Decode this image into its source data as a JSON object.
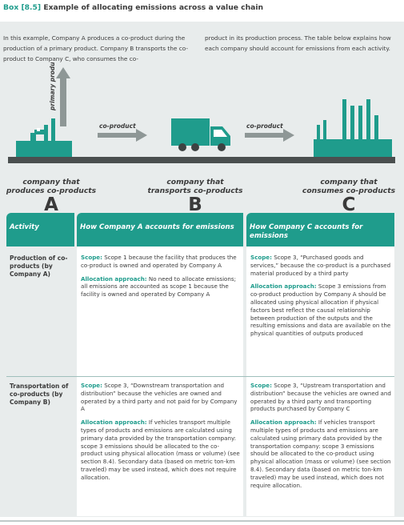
{
  "box": {
    "number": "Box [8.5]",
    "title": "Example of allocating emissions across a value chain"
  },
  "intro": {
    "left": "In this example, Company A produces a co-product during the production of a primary product. Company B transports the co-product to Company C, who consumes the co-",
    "right": "product in its production process. The table below explains how each company should account for emissions from each activity."
  },
  "illustration": {
    "primary_product_label": "primary product",
    "coproduct_label_1": "co-product",
    "coproduct_label_2": "co-product",
    "colors": {
      "teal": "#1f9c8c",
      "gray": "#8e9796",
      "dark": "#3d4242",
      "road": "#4a4f4f"
    }
  },
  "companies": [
    {
      "desc": "company that produces co-products",
      "letter": "A"
    },
    {
      "desc": "company that transports co-products",
      "letter": "B"
    },
    {
      "desc": "company that consumes co-products",
      "letter": "C"
    }
  ],
  "table": {
    "headers": {
      "activity": "Activity",
      "col_a": "How Company A accounts for emissions",
      "col_c": "How Company C accounts for emissions"
    },
    "rows": [
      {
        "activity": "Production of co-products (by Company A)",
        "a_scope_label": "Scope:",
        "a_scope": "Scope 1 because the facility that produces the co-product is owned and operated by Company A",
        "a_alloc_label": "Allocation approach:",
        "a_alloc": "No need to allocate emissions; all emissions are accounted as scope 1 because the facility is owned and operated by Company A",
        "c_scope_label": "Scope:",
        "c_scope": "Scope 3, “Purchased goods and services,” because the co-product is a purchased material produced by a third party",
        "c_alloc_label": "Allocation approach:",
        "c_alloc": "Scope 3 emissions from co-product production by Company A should be allocated using physical allocation if physical factors best reflect the causal relationship between production of the outputs and the resulting emissions and data are available on the physical quantities of outputs produced"
      },
      {
        "activity": "Transportation of co-products (by Company B)",
        "a_scope_label": "Scope:",
        "a_scope": "Scope 3, “Downstream transportation and distribution” because the vehicles are owned and operated by a third party and not paid for by Company A",
        "a_alloc_label": "Allocation approach:",
        "a_alloc": "If vehicles transport multiple types of products and emissions are calculated using primary data provided by the transportation company: scope 3 emissions should be allocated to the co-product using physical allocation (mass or volume) (see section 8.4). Secondary data (based on metric ton-km traveled) may be used instead, which does not require allocation.",
        "c_scope_label": "Scope:",
        "c_scope": "Scope 3, “Upstream transportation and distribution” because the vehicles are owned and operated by a third party and transporting products purchased by Company C",
        "c_alloc_label": "Allocation approach:",
        "c_alloc": "If vehicles transport multiple types of products and emissions are calculated using primary data provided by the transportation company: scope 3 emissions should be allocated to the co-product using physical allocation (mass or volume) (see section 8.4). Secondary data (based on metric ton-km traveled) may be used instead, which does not require allocation."
      }
    ]
  }
}
